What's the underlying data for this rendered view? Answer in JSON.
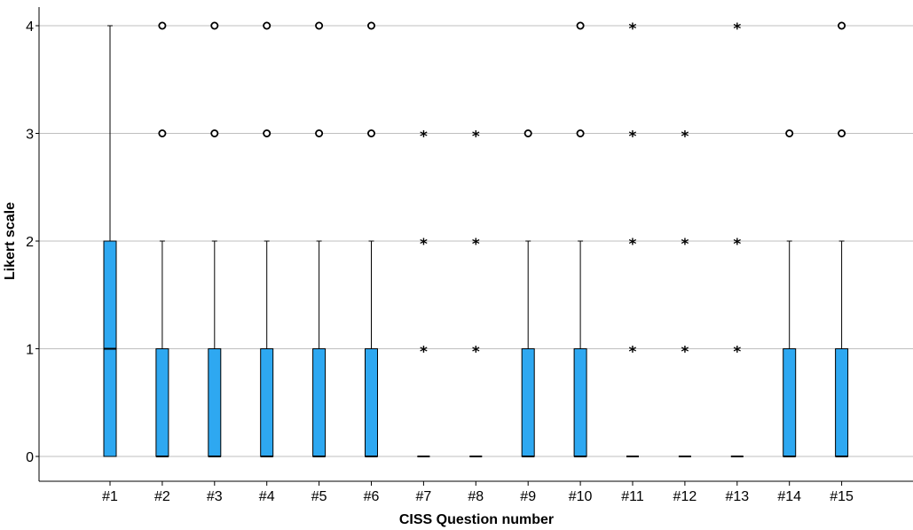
{
  "chart_data": {
    "type": "boxplot",
    "title": "",
    "xlabel": "CISS Question number",
    "ylabel": "Likert scale",
    "ylim": [
      0,
      4
    ],
    "yticks": [
      0,
      1,
      2,
      3,
      4
    ],
    "grid": "horizontal",
    "colors": {
      "box_fill": "#2EA8F1",
      "box_stroke": "#000000",
      "grid": "#BFBFBF"
    },
    "categories": [
      "#1",
      "#2",
      "#3",
      "#4",
      "#5",
      "#6",
      "#7",
      "#8",
      "#9",
      "#10",
      "#11",
      "#12",
      "#13",
      "#14",
      "#15"
    ],
    "boxes": [
      {
        "category": "#1",
        "min": 0,
        "q1": 0,
        "median": 1,
        "q3": 2,
        "max": 4,
        "outliers": [],
        "extremes": []
      },
      {
        "category": "#2",
        "min": 0,
        "q1": 0,
        "median": 0,
        "q3": 1,
        "max": 2,
        "outliers": [
          3,
          4
        ],
        "extremes": []
      },
      {
        "category": "#3",
        "min": 0,
        "q1": 0,
        "median": 0,
        "q3": 1,
        "max": 2,
        "outliers": [
          3,
          4
        ],
        "extremes": []
      },
      {
        "category": "#4",
        "min": 0,
        "q1": 0,
        "median": 0,
        "q3": 1,
        "max": 2,
        "outliers": [
          3,
          4
        ],
        "extremes": []
      },
      {
        "category": "#5",
        "min": 0,
        "q1": 0,
        "median": 0,
        "q3": 1,
        "max": 2,
        "outliers": [
          3,
          4
        ],
        "extremes": []
      },
      {
        "category": "#6",
        "min": 0,
        "q1": 0,
        "median": 0,
        "q3": 1,
        "max": 2,
        "outliers": [
          3,
          4
        ],
        "extremes": []
      },
      {
        "category": "#7",
        "min": 0,
        "q1": 0,
        "median": 0,
        "q3": 0,
        "max": 0,
        "outliers": [],
        "extremes": [
          1,
          2,
          3
        ]
      },
      {
        "category": "#8",
        "min": 0,
        "q1": 0,
        "median": 0,
        "q3": 0,
        "max": 0,
        "outliers": [],
        "extremes": [
          1,
          2,
          3
        ]
      },
      {
        "category": "#9",
        "min": 0,
        "q1": 0,
        "median": 0,
        "q3": 1,
        "max": 2,
        "outliers": [
          3
        ],
        "extremes": []
      },
      {
        "category": "#10",
        "min": 0,
        "q1": 0,
        "median": 0,
        "q3": 1,
        "max": 2,
        "outliers": [
          3,
          4
        ],
        "extremes": []
      },
      {
        "category": "#11",
        "min": 0,
        "q1": 0,
        "median": 0,
        "q3": 0,
        "max": 0,
        "outliers": [],
        "extremes": [
          1,
          2,
          3,
          4
        ]
      },
      {
        "category": "#12",
        "min": 0,
        "q1": 0,
        "median": 0,
        "q3": 0,
        "max": 0,
        "outliers": [],
        "extremes": [
          1,
          2,
          3
        ]
      },
      {
        "category": "#13",
        "min": 0,
        "q1": 0,
        "median": 0,
        "q3": 0,
        "max": 0,
        "outliers": [],
        "extremes": [
          1,
          2,
          4
        ]
      },
      {
        "category": "#14",
        "min": 0,
        "q1": 0,
        "median": 0,
        "q3": 1,
        "max": 2,
        "outliers": [
          3
        ],
        "extremes": []
      },
      {
        "category": "#15",
        "min": 0,
        "q1": 0,
        "median": 0,
        "q3": 1,
        "max": 2,
        "outliers": [
          3,
          4
        ],
        "extremes": []
      }
    ]
  }
}
